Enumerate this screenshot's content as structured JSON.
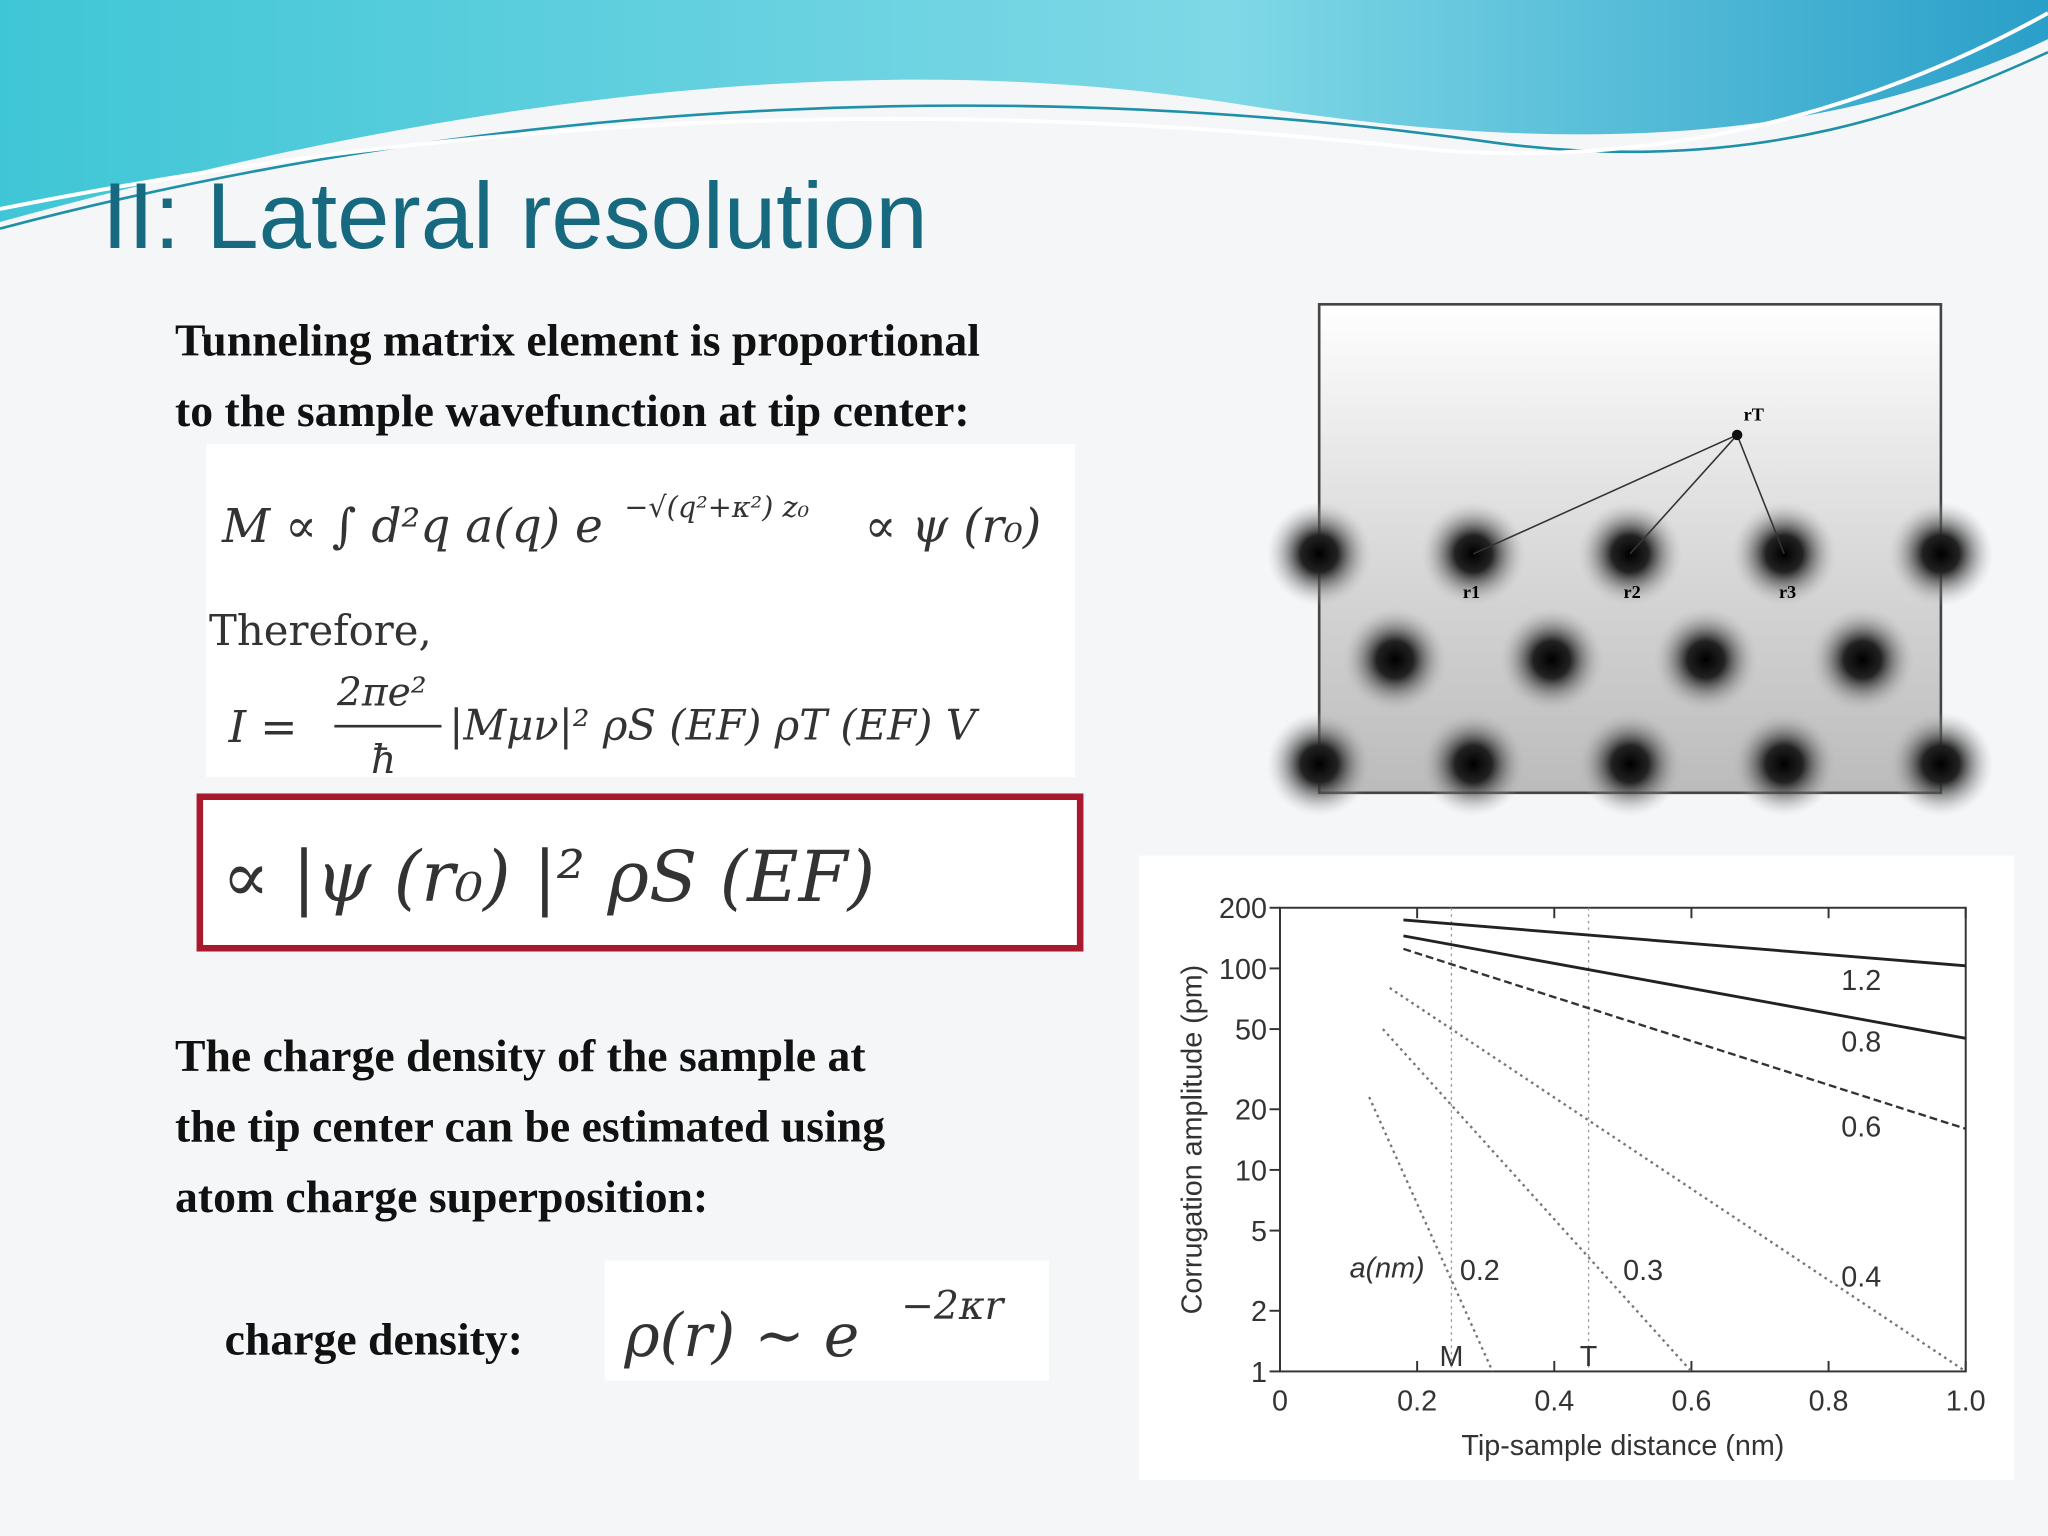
{
  "slide": {
    "title": "II: Lateral resolution",
    "intro": [
      "Tunneling matrix element is proportional",
      "to the sample wavefunction at tip center:"
    ],
    "equation_1": {
      "main": "M ∝ ∫ d²q a(q) e",
      "exponent": "−√(q²+κ²) z₀",
      "tail": "∝ ψ (r₀)"
    },
    "therefore": "Therefore,",
    "equation_2": {
      "lhs": "I =",
      "numerator": "2πe²",
      "denominator": "ħ",
      "rhs": "|Mμν|² ρS (EF) ρT (EF) V"
    },
    "equation_3": "∝  |ψ (r₀) |² ρS (EF)",
    "body": [
      "The charge density of the sample at",
      "the tip center can be estimated using",
      "atom charge superposition:"
    ],
    "charge_label": "charge density:",
    "equation_4": {
      "main": "ρ(r) ∼ e",
      "exponent": "−2κr"
    },
    "atom_image": {
      "tip_label": "rT",
      "atom_labels": [
        "r1",
        "r2",
        "r3"
      ]
    }
  },
  "chart_data": {
    "type": "line",
    "y_label": "Corrugation amplitude (pm)",
    "x_label": "Tip-sample distance (nm)",
    "log_y": true,
    "xlim": [
      0,
      1
    ],
    "xticks": [
      0,
      0.2,
      0.4,
      0.6,
      0.8,
      {
        "value": 1,
        "label": "1.0"
      }
    ],
    "ylim": [
      1,
      200
    ],
    "yticks": [
      1,
      2,
      5,
      10,
      20,
      50,
      100,
      200
    ],
    "legend_title": "a(nm)",
    "markers": [
      {
        "label": "M",
        "x": 0.25
      },
      {
        "label": "T",
        "x": 0.45
      }
    ],
    "series": [
      {
        "name": "1.2",
        "color": "#222222",
        "style": "solid",
        "x": [
          0.18,
          1
        ],
        "values": [
          174,
          103
        ]
      },
      {
        "name": "0.8",
        "color": "#222222",
        "style": "solid",
        "x": [
          0.18,
          1
        ],
        "values": [
          145,
          45
        ]
      },
      {
        "name": "0.6",
        "color": "#333333",
        "style": "dashed",
        "x": [
          0.18,
          1
        ],
        "values": [
          125,
          16
        ]
      },
      {
        "name": "0.4",
        "color": "#777777",
        "style": "dotted",
        "x": [
          0.16,
          1
        ],
        "values": [
          80,
          1
        ]
      },
      {
        "name": "0.3",
        "color": "#777777",
        "style": "dotted",
        "x": [
          0.15,
          0.6
        ],
        "values": [
          50,
          1
        ]
      },
      {
        "name": "0.2",
        "color": "#777777",
        "style": "dotted",
        "x": [
          0.13,
          0.31
        ],
        "values": [
          23,
          1
        ]
      }
    ]
  }
}
